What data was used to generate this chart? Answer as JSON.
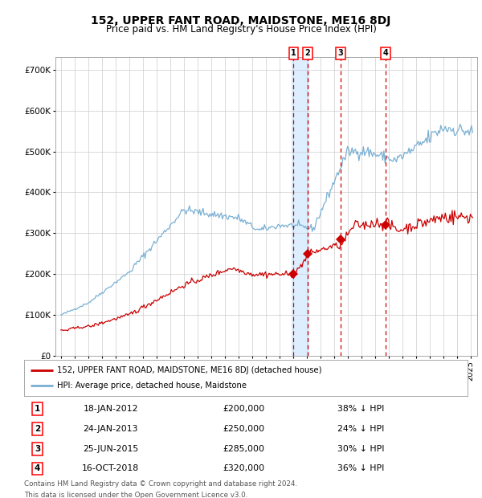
{
  "title": "152, UPPER FANT ROAD, MAIDSTONE, ME16 8DJ",
  "subtitle": "Price paid vs. HM Land Registry's House Price Index (HPI)",
  "title_fontsize": 10,
  "subtitle_fontsize": 8.5,
  "bg_color": "#ffffff",
  "plot_bg_color": "#ffffff",
  "grid_color": "#cccccc",
  "red_line_color": "#cc0000",
  "blue_line_color": "#7ab0d4",
  "shade_color": "#ddeeff",
  "sale_dates": [
    2012.05,
    2013.07,
    2015.49,
    2018.79
  ],
  "sale_prices": [
    200000,
    250000,
    285000,
    320000
  ],
  "sale_labels": [
    "1",
    "2",
    "3",
    "4"
  ],
  "transaction_info": [
    {
      "label": "1",
      "date": "18-JAN-2012",
      "price": "£200,000",
      "pct": "38% ↓ HPI"
    },
    {
      "label": "2",
      "date": "24-JAN-2013",
      "price": "£250,000",
      "pct": "24% ↓ HPI"
    },
    {
      "label": "3",
      "date": "25-JUN-2015",
      "price": "£285,000",
      "pct": "30% ↓ HPI"
    },
    {
      "label": "4",
      "date": "16-OCT-2018",
      "price": "£320,000",
      "pct": "36% ↓ HPI"
    }
  ],
  "shade_start": 2011.9,
  "shade_end": 2013.15,
  "ylim": [
    0,
    730000
  ],
  "xlim_start": 1994.6,
  "xlim_end": 2025.5,
  "footer_line1": "Contains HM Land Registry data © Crown copyright and database right 2024.",
  "footer_line2": "This data is licensed under the Open Government Licence v3.0.",
  "legend_red": "152, UPPER FANT ROAD, MAIDSTONE, ME16 8DJ (detached house)",
  "legend_blue": "HPI: Average price, detached house, Maidstone",
  "yticks": [
    0,
    100000,
    200000,
    300000,
    400000,
    500000,
    600000,
    700000
  ],
  "ytick_labels": [
    "£0",
    "£100K",
    "£200K",
    "£300K",
    "£400K",
    "£500K",
    "£600K",
    "£700K"
  ]
}
